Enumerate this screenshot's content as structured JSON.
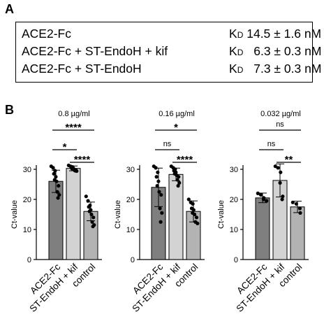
{
  "panel_a": {
    "letter": "A",
    "rows": [
      {
        "label": "ACE2-Fc",
        "kd_symbol": "K",
        "kd_sub": "D",
        "value": "14.5 ± 1.6 nM"
      },
      {
        "label": "ACE2-Fc + ST-EndoH + kif",
        "kd_symbol": "K",
        "kd_sub": "D",
        "value": "6.3 ± 0.3 nM"
      },
      {
        "label": "ACE2-Fc + ST-EndoH",
        "kd_symbol": "K",
        "kd_sub": "D",
        "value": "7.3 ± 0.3 nM"
      }
    ]
  },
  "panel_b": {
    "letter": "B"
  },
  "colors": {
    "bar1": "#7f7f7f",
    "bar2": "#d3d3d3",
    "bar3": "#b3b3b3",
    "axis": "#000000"
  },
  "chart_data": [
    {
      "type": "bar",
      "title": "0.8 µg/ml",
      "ylabel": "Ct-value",
      "categories": [
        "ACE2-Fc",
        "ST-EndoH + kif",
        "control"
      ],
      "values": [
        26,
        30.3,
        16
      ],
      "errors": [
        3.7,
        0.8,
        3.1
      ],
      "ylim": [
        0,
        30
      ],
      "yticks": [
        0,
        10,
        20,
        30
      ],
      "points": [
        [
          31,
          30.5,
          29.5,
          28.5,
          27.5,
          26.5,
          26,
          24.5,
          22.5,
          21.5,
          20.5
        ],
        [
          31.3,
          31,
          30.8,
          30.6,
          30.4,
          30.2,
          30,
          29.8,
          29.6,
          29.4,
          29.5
        ],
        [
          21,
          19.5,
          18,
          17.5,
          16.5,
          16,
          15,
          14,
          12.5,
          11.5,
          11
        ]
      ],
      "significance": [
        {
          "from": 0,
          "to": 2,
          "label": "****"
        },
        {
          "from": 0,
          "to": 1,
          "label": "*"
        },
        {
          "from": 1,
          "to": 2,
          "label": "****"
        }
      ]
    },
    {
      "type": "bar",
      "title": "0.16 µg/ml",
      "ylabel": "Ct-value",
      "categories": [
        "ACE2-Fc",
        "ST-EndoH + kif",
        "control"
      ],
      "values": [
        24,
        28.3,
        16
      ],
      "errors": [
        6.4,
        2.1,
        3.5
      ],
      "ylim": [
        0,
        30
      ],
      "yticks": [
        0,
        10,
        20,
        30
      ],
      "points": [
        [
          31,
          30.5,
          29,
          27.5,
          26,
          24.5,
          22.5,
          21.5,
          17,
          15.5,
          12.5
        ],
        [
          31,
          30.5,
          30,
          29.5,
          29,
          28.5,
          28,
          27.5,
          26.5,
          25.5,
          24.5
        ],
        [
          20,
          19,
          18.5,
          17,
          16.5,
          15.5,
          15,
          14,
          12.5,
          12
        ]
      ],
      "significance": [
        {
          "from": 0,
          "to": 2,
          "label": "*"
        },
        {
          "from": 0,
          "to": 1,
          "label": "ns"
        },
        {
          "from": 1,
          "to": 2,
          "label": "****"
        }
      ]
    },
    {
      "type": "bar",
      "title": "0.032 µg/ml",
      "ylabel": "Ct-value",
      "categories": [
        "ACE2-Fc",
        "ST-EndoH + kif",
        "control"
      ],
      "values": [
        20.5,
        26.3,
        17.5
      ],
      "errors": [
        1.6,
        5.5,
        1.9
      ],
      "ylim": [
        0,
        30
      ],
      "yticks": [
        0,
        10,
        20,
        30
      ],
      "points": [
        [
          22,
          21.5,
          20.5,
          20,
          19.5
        ],
        [
          31,
          30.5,
          29,
          25.5,
          21,
          20
        ],
        [
          19,
          18.5,
          17,
          15.5
        ]
      ],
      "significance": [
        {
          "from": 0,
          "to": 2,
          "label": "ns"
        },
        {
          "from": 0,
          "to": 1,
          "label": "ns"
        },
        {
          "from": 1,
          "to": 2,
          "label": "**"
        }
      ]
    }
  ]
}
